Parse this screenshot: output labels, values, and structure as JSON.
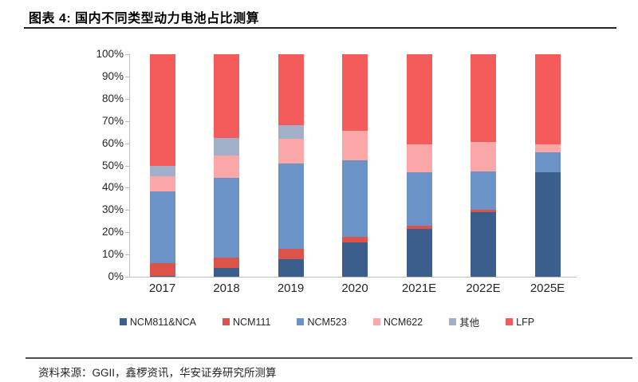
{
  "header": {
    "title": "图表 4: 国内不同类型动力电池占比测算"
  },
  "footer": {
    "source": "资料来源：GGII，鑫椤资讯，华安证券研究所测算"
  },
  "chart_data": {
    "type": "bar",
    "stacked": true,
    "title": "国内不同类型动力电池占比测算",
    "categories": [
      "2017",
      "2018",
      "2019",
      "2020",
      "2021E",
      "2022E",
      "2025E"
    ],
    "series": [
      {
        "name": "NCM811&NCA",
        "color": "#3A5F8D",
        "values": [
          0.5,
          4,
          8,
          15.5,
          21.5,
          29,
          47
        ]
      },
      {
        "name": "NCM111",
        "color": "#DC5349",
        "values": [
          5.5,
          4.5,
          4.5,
          2.5,
          1.5,
          1,
          0
        ]
      },
      {
        "name": "NCM523",
        "color": "#6B93C7",
        "values": [
          32.5,
          36,
          38.5,
          34.5,
          24,
          17.5,
          9
        ]
      },
      {
        "name": "NCM622",
        "color": "#FBA7A8",
        "values": [
          6.5,
          10,
          11,
          13,
          12.5,
          13,
          3.5
        ]
      },
      {
        "name": "其他",
        "color": "#A2AFC8",
        "values": [
          5,
          8,
          6,
          0,
          0,
          0,
          0
        ]
      },
      {
        "name": "LFP",
        "color": "#F45B5B",
        "values": [
          50,
          37.5,
          32,
          34.5,
          40.5,
          39.5,
          40.5
        ]
      }
    ],
    "xlabel": "",
    "ylabel": "",
    "ylim": [
      0,
      100
    ],
    "yticks": [
      "0%",
      "10%",
      "20%",
      "30%",
      "40%",
      "50%",
      "60%",
      "70%",
      "80%",
      "90%",
      "100%"
    ],
    "grid": false,
    "legend_position": "bottom",
    "axis_color": "#BFBFBF",
    "text_color": "#262626"
  }
}
